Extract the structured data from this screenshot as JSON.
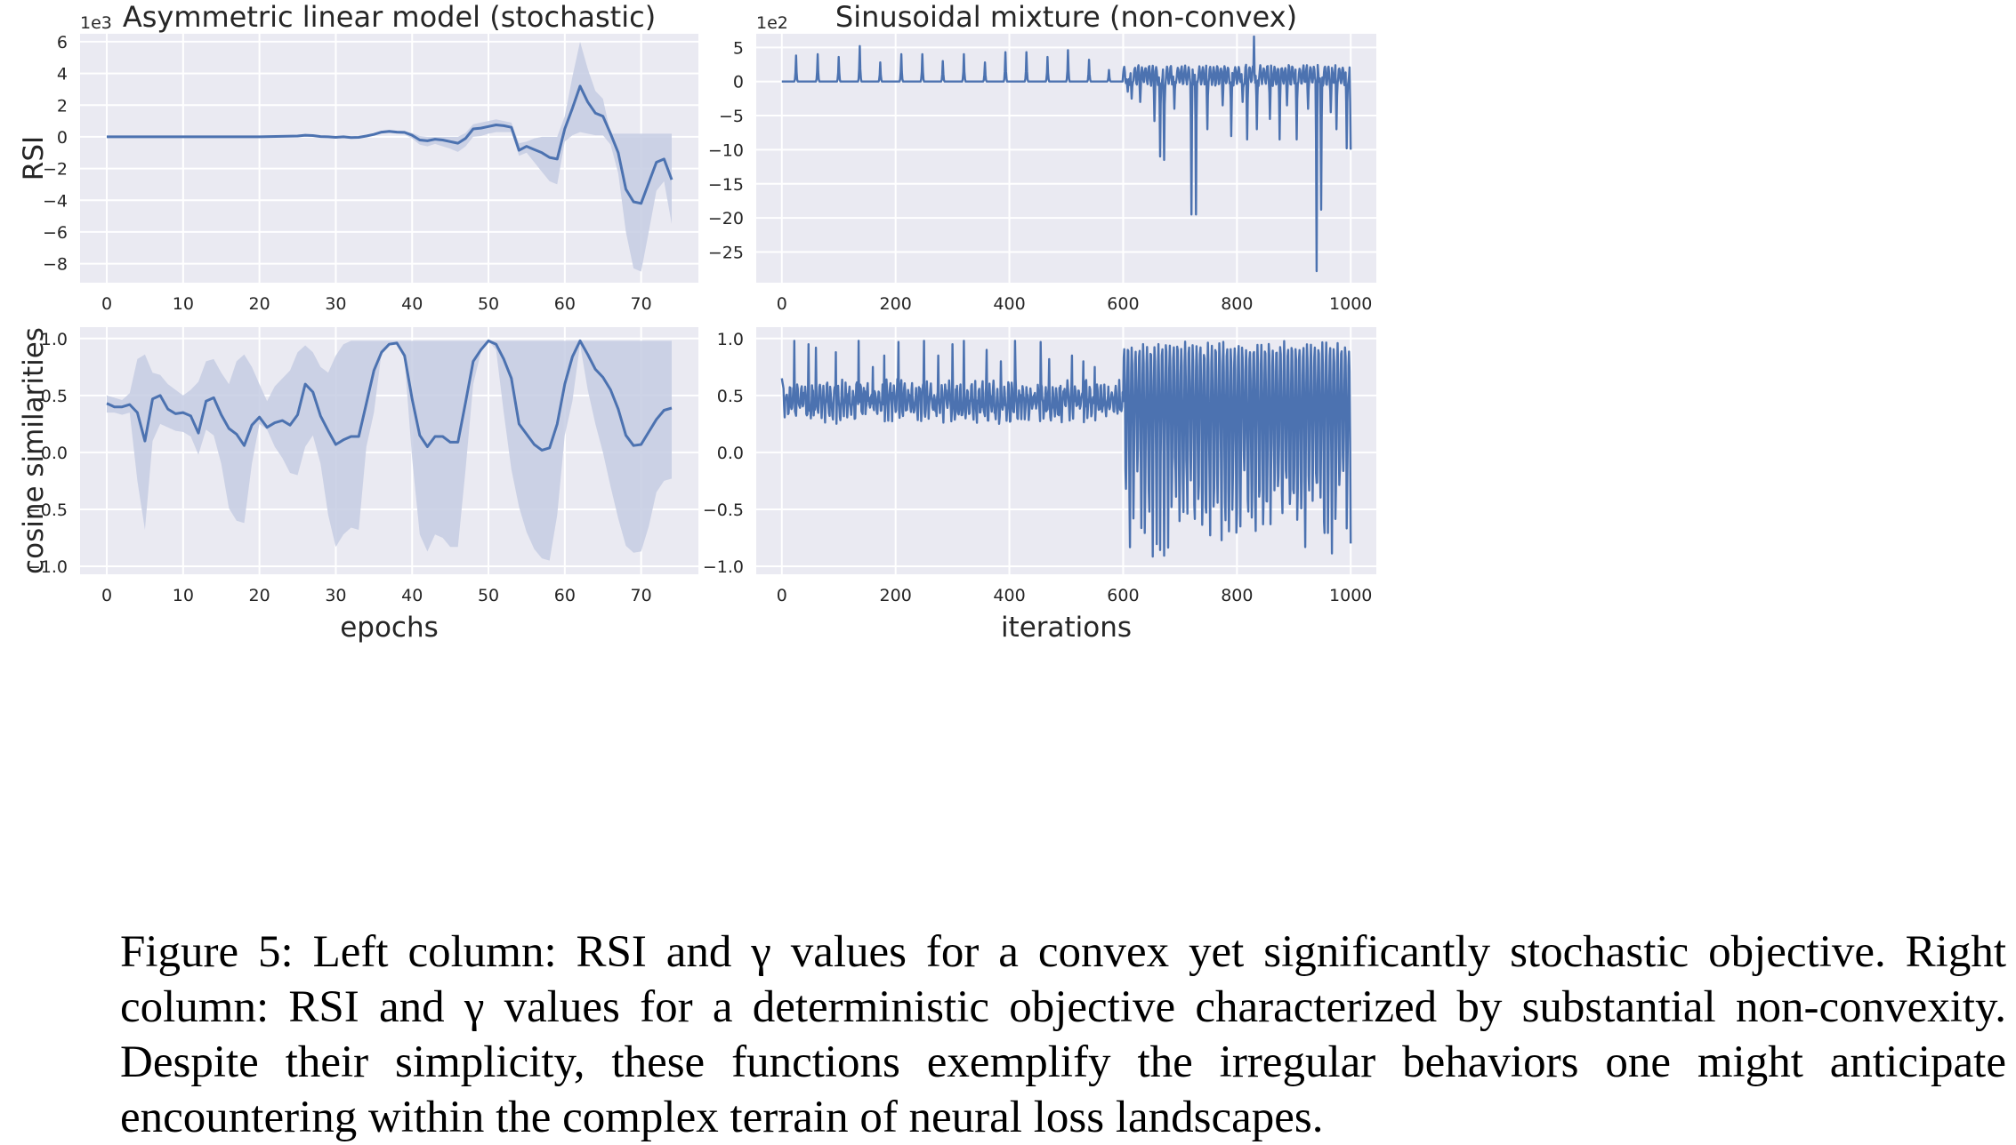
{
  "figure": {
    "colors": {
      "line": "#4c72b0",
      "band": "#c5cde3",
      "plot_bg": "#eaeaf2",
      "grid": "#ffffff",
      "tick_text": "#262626"
    },
    "caption": {
      "lines": [
        "Figure 5: Left column: RSI and γ values for a convex yet significantly stochastic objective. Right",
        "column: RSI and γ values for a deterministic objective characterized by substantial non-convexity.",
        "Despite their simplicity, these functions exemplify the irregular behaviors one might anticipate",
        "encountering within the complex terrain of neural loss landscapes."
      ]
    }
  },
  "chart_data": [
    {
      "type": "line",
      "panel": "top-left",
      "title": "Asymmetric linear model (stochastic)",
      "ylabel": "RSI",
      "xlabel": "",
      "multiplier_label": "1e3",
      "xlim": [
        -3.5,
        77.5
      ],
      "ylim": [
        -9.2,
        6.5
      ],
      "xticks": [
        0,
        10,
        20,
        30,
        40,
        50,
        60,
        70
      ],
      "yticks": [
        -8,
        -6,
        -4,
        -2,
        0,
        2,
        4,
        6
      ],
      "grid": true,
      "series": [
        {
          "x": [
            0,
            5,
            10,
            15,
            20,
            25,
            26,
            27,
            28,
            29,
            30,
            31,
            32,
            33,
            34,
            35,
            36,
            37,
            38,
            39,
            40,
            41,
            42,
            43,
            44,
            45,
            46,
            47,
            48,
            49,
            50,
            51,
            52,
            53,
            54,
            55,
            56,
            57,
            58,
            59,
            60,
            61,
            62,
            63,
            64,
            65,
            66,
            67,
            68,
            69,
            70,
            71,
            72,
            73,
            74
          ],
          "y": [
            0,
            0,
            0,
            0,
            0,
            0.05,
            0.1,
            0.08,
            0.02,
            0,
            -0.03,
            0,
            -0.05,
            -0.03,
            0.05,
            0.15,
            0.3,
            0.35,
            0.3,
            0.28,
            0.1,
            -0.2,
            -0.25,
            -0.15,
            -0.2,
            -0.3,
            -0.4,
            -0.1,
            0.5,
            0.55,
            0.65,
            0.75,
            0.7,
            0.6,
            -0.85,
            -0.6,
            -0.8,
            -1.0,
            -1.3,
            -1.4,
            0.5,
            1.8,
            3.2,
            2.2,
            1.5,
            1.3,
            0.2,
            -1.0,
            -3.3,
            -4.1,
            -4.2,
            -2.9,
            -1.6,
            -1.4,
            -2.7
          ],
          "lower": [
            0,
            0,
            0,
            0,
            0,
            0,
            0,
            0,
            0,
            0,
            -0.08,
            -0.05,
            -0.1,
            -0.08,
            0,
            0.1,
            0.2,
            0.25,
            0.2,
            0.15,
            -0.1,
            -0.5,
            -0.6,
            -0.45,
            -0.6,
            -0.75,
            -0.95,
            -0.6,
            0,
            0.05,
            0.2,
            0.3,
            0.3,
            0.3,
            -1.2,
            -1.0,
            -1.6,
            -2.2,
            -2.8,
            -3.0,
            -0.3,
            0.1,
            0.3,
            0.2,
            0.1,
            0.1,
            -0.5,
            -2.3,
            -6.0,
            -8.3,
            -8.5,
            -6.0,
            -3.4,
            -2.8,
            -5.5
          ],
          "upper": [
            0,
            0,
            0,
            0,
            0,
            0.1,
            0.15,
            0.12,
            0.08,
            0.05,
            0.03,
            0.05,
            0.03,
            0.03,
            0.12,
            0.2,
            0.38,
            0.42,
            0.38,
            0.33,
            0.25,
            0.05,
            0,
            0,
            0,
            0,
            0,
            0.25,
            0.8,
            0.9,
            1.0,
            1.1,
            1.0,
            0.9,
            -0.4,
            -0.3,
            -0.1,
            0,
            0,
            0,
            1.3,
            3.8,
            6.0,
            4.3,
            2.9,
            2.4,
            0.2,
            0.2,
            0.2,
            0.2,
            0.2,
            0.2,
            0.2,
            0.2,
            0.2
          ]
        }
      ]
    },
    {
      "type": "line",
      "panel": "top-right",
      "title": "Sinusoidal mixture (non-convex)",
      "ylabel": "",
      "xlabel": "",
      "multiplier_label": "1e2",
      "xlim": [
        -45,
        1045
      ],
      "ylim": [
        -29.5,
        7.0
      ],
      "xticks": [
        0,
        200,
        400,
        600,
        800,
        1000
      ],
      "yticks": [
        -25,
        -20,
        -15,
        -10,
        -5,
        0,
        5
      ],
      "grid": true,
      "series": [
        {
          "spikes_x": [
            25,
            63,
            100,
            137,
            173,
            210,
            247,
            283,
            320,
            357,
            393,
            430,
            467,
            503,
            540,
            575
          ],
          "spikes_y": [
            3.8,
            4.0,
            3.6,
            5.2,
            2.8,
            4.0,
            4.0,
            3.0,
            4.0,
            2.8,
            4.3,
            4.3,
            3.6,
            4.6,
            3.2,
            1.7
          ],
          "baseline_y": 0.0,
          "osc_start": 600,
          "osc_end": 1000,
          "osc_period": 6.3,
          "osc_high": 2.2,
          "osc_low": -0.4,
          "dips_x": [
            608,
            615,
            630,
            655,
            665,
            672,
            690,
            720,
            728,
            748,
            775,
            790,
            810,
            818,
            835,
            858,
            875,
            888,
            905,
            925,
            940,
            948,
            965,
            975,
            993,
            1000
          ],
          "dips_y": [
            -1.5,
            -2.5,
            -3.0,
            -5.8,
            -11.0,
            -11.5,
            -4.0,
            -19.5,
            -19.5,
            -7.0,
            -3.5,
            -8.0,
            -3.0,
            -8.5,
            -7.0,
            -5.5,
            -8.5,
            -3.5,
            -8.5,
            -4.0,
            -27.8,
            -18.8,
            -4.5,
            -7.0,
            -9.8,
            -10.0
          ],
          "peak_x": 830,
          "peak_y": 6.6
        }
      ]
    },
    {
      "type": "line",
      "panel": "bottom-left",
      "title": "",
      "ylabel": "cosine similarities",
      "xlabel": "epochs",
      "xlim": [
        -3.5,
        77.5
      ],
      "ylim": [
        -1.07,
        1.1
      ],
      "xticks": [
        0,
        10,
        20,
        30,
        40,
        50,
        60,
        70
      ],
      "yticks": [
        -1.0,
        -0.5,
        0.0,
        0.5,
        1.0
      ],
      "grid": true,
      "series": [
        {
          "x": [
            0,
            1,
            2,
            3,
            4,
            5,
            6,
            7,
            8,
            9,
            10,
            11,
            12,
            13,
            14,
            15,
            16,
            17,
            18,
            19,
            20,
            21,
            22,
            23,
            24,
            25,
            26,
            27,
            28,
            29,
            30,
            31,
            32,
            33,
            34,
            35,
            36,
            37,
            38,
            39,
            40,
            41,
            42,
            43,
            44,
            45,
            46,
            47,
            48,
            49,
            50,
            51,
            52,
            53,
            54,
            55,
            56,
            57,
            58,
            59,
            60,
            61,
            62,
            63,
            64,
            65,
            66,
            67,
            68,
            69,
            70,
            71,
            72,
            73,
            74
          ],
          "y": [
            0.43,
            0.4,
            0.4,
            0.42,
            0.35,
            0.1,
            0.47,
            0.5,
            0.38,
            0.34,
            0.35,
            0.32,
            0.17,
            0.45,
            0.48,
            0.33,
            0.21,
            0.16,
            0.06,
            0.24,
            0.31,
            0.22,
            0.26,
            0.28,
            0.24,
            0.33,
            0.6,
            0.53,
            0.32,
            0.19,
            0.07,
            0.11,
            0.14,
            0.14,
            0.43,
            0.72,
            0.88,
            0.95,
            0.96,
            0.85,
            0.47,
            0.15,
            0.05,
            0.14,
            0.14,
            0.09,
            0.09,
            0.44,
            0.8,
            0.9,
            0.98,
            0.95,
            0.82,
            0.65,
            0.25,
            0.16,
            0.07,
            0.02,
            0.04,
            0.25,
            0.6,
            0.84,
            0.98,
            0.86,
            0.73,
            0.66,
            0.55,
            0.38,
            0.15,
            0.06,
            0.07,
            0.18,
            0.29,
            0.37,
            0.39
          ],
          "lower": [
            0.35,
            0.35,
            0.33,
            0.35,
            -0.25,
            -0.68,
            0.1,
            0.25,
            0.22,
            0.19,
            0.18,
            0.14,
            -0.02,
            0.2,
            0.15,
            -0.1,
            -0.49,
            -0.6,
            -0.62,
            -0.1,
            0.25,
            0.2,
            0.05,
            -0.05,
            -0.18,
            -0.2,
            0.05,
            0.15,
            -0.1,
            -0.55,
            -0.83,
            -0.72,
            -0.66,
            -0.68,
            0.05,
            0.35,
            0.88,
            0.94,
            0.95,
            0.82,
            -0.05,
            -0.72,
            -0.87,
            -0.72,
            -0.75,
            -0.83,
            -0.83,
            -0.15,
            0.6,
            0.88,
            0.98,
            0.9,
            0.35,
            -0.15,
            -0.48,
            -0.7,
            -0.85,
            -0.93,
            -0.95,
            -0.55,
            0.15,
            0.45,
            0.95,
            0.55,
            0.25,
            0.0,
            -0.3,
            -0.58,
            -0.82,
            -0.88,
            -0.87,
            -0.65,
            -0.35,
            -0.25,
            -0.23
          ],
          "upper": [
            0.5,
            0.48,
            0.46,
            0.52,
            0.82,
            0.86,
            0.7,
            0.68,
            0.6,
            0.55,
            0.5,
            0.55,
            0.62,
            0.8,
            0.82,
            0.7,
            0.6,
            0.8,
            0.86,
            0.75,
            0.6,
            0.45,
            0.58,
            0.65,
            0.72,
            0.88,
            0.94,
            0.88,
            0.75,
            0.7,
            0.85,
            0.95,
            0.98,
            0.98,
            0.98,
            0.98,
            0.98,
            0.98,
            0.98,
            0.98,
            0.98,
            0.98,
            0.98,
            0.98,
            0.98,
            0.98,
            0.98,
            0.98,
            0.98,
            0.98,
            0.98,
            0.98,
            0.98,
            0.98,
            0.98,
            0.98,
            0.98,
            0.98,
            0.98,
            0.98,
            0.98,
            0.98,
            0.98,
            0.98,
            0.98,
            0.98,
            0.98,
            0.98,
            0.98,
            0.98,
            0.98,
            0.98,
            0.98,
            0.98,
            0.98
          ]
        }
      ]
    },
    {
      "type": "line",
      "panel": "bottom-right",
      "title": "",
      "ylabel": "",
      "xlabel": "iterations",
      "xlim": [
        -45,
        1045
      ],
      "ylim": [
        -1.07,
        1.1
      ],
      "xticks": [
        0,
        200,
        400,
        600,
        800,
        1000
      ],
      "yticks": [
        -1.0,
        -0.5,
        0.0,
        0.5,
        1.0
      ],
      "grid": true,
      "series": [
        {
          "start_y": 0.65,
          "phase1_end": 600,
          "phase1_center": 0.45,
          "phase1_amp": 0.12,
          "phase1_period": 6.5,
          "phase1_spikes_x": [
            22,
            47,
            60,
            95,
            135,
            160,
            180,
            205,
            250,
            275,
            300,
            320,
            360,
            385,
            410,
            455,
            470,
            510,
            530,
            550
          ],
          "phase1_spikes_y": [
            0.98,
            0.95,
            0.92,
            0.88,
            0.98,
            0.75,
            0.85,
            0.97,
            0.98,
            0.85,
            0.95,
            0.98,
            0.9,
            0.8,
            0.98,
            0.97,
            0.82,
            0.85,
            0.8,
            0.75
          ],
          "phase2_end": 1000,
          "phase2_period": 6.7,
          "phase2_high": [
            0.98,
            0.88
          ],
          "phase2_low": [
            -0.95,
            -0.1
          ],
          "end_y": -0.8
        }
      ]
    }
  ]
}
